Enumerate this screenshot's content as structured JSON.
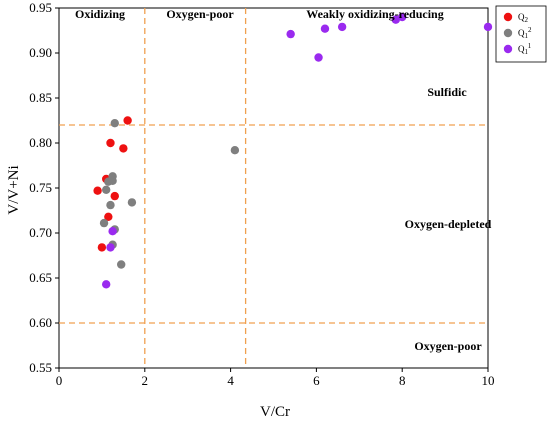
{
  "chart_data": {
    "type": "scatter",
    "title": "",
    "xlabel": "V/Cr",
    "ylabel": "V/V+Ni",
    "xlim": [
      0,
      10
    ],
    "ylim": [
      0.55,
      0.95
    ],
    "grid": false,
    "legend_placement": "top-right",
    "x_ticks": [
      "0",
      "2",
      "4",
      "6",
      "8",
      "10"
    ],
    "y_ticks": [
      "0.55",
      "0.60",
      "0.65",
      "0.70",
      "0.75",
      "0.80",
      "0.85",
      "0.90",
      "0.95"
    ],
    "threshold_lines": {
      "vertical": [
        2,
        4.35
      ],
      "horizontal": [
        0.6,
        0.82
      ],
      "color": "#f0a050"
    },
    "zone_labels": {
      "oxidizing": "Oxidizing",
      "oxygen_poor_top": "Oxygen-poor",
      "weakly": "Weakly oxidizing-reducing",
      "sulfidic": "Sulfidic",
      "oxygen_depleted": "Oxygen-depleted",
      "oxygen_poor_bottom": "Oxygen-poor"
    },
    "series": [
      {
        "name": "Q2",
        "legend_main": "Q",
        "legend_sub": "2",
        "legend_sup": "",
        "color": "#ee1111",
        "points": [
          [
            0.9,
            0.747
          ],
          [
            1.0,
            0.684
          ],
          [
            1.1,
            0.76
          ],
          [
            1.15,
            0.718
          ],
          [
            1.2,
            0.8
          ],
          [
            1.3,
            0.741
          ],
          [
            1.5,
            0.794
          ],
          [
            1.6,
            0.825
          ]
        ]
      },
      {
        "name": "Q12",
        "legend_main": "Q",
        "legend_sub": "1",
        "legend_sup": "2",
        "color": "#7f7f7f",
        "points": [
          [
            1.05,
            0.711
          ],
          [
            1.1,
            0.748
          ],
          [
            1.15,
            0.757
          ],
          [
            1.2,
            0.731
          ],
          [
            1.25,
            0.687
          ],
          [
            1.25,
            0.758
          ],
          [
            1.3,
            0.704
          ],
          [
            1.3,
            0.822
          ],
          [
            1.45,
            0.665
          ],
          [
            1.7,
            0.734
          ],
          [
            4.1,
            0.792
          ],
          [
            1.25,
            0.763
          ]
        ]
      },
      {
        "name": "Q11",
        "legend_main": "Q",
        "legend_sub": "1",
        "legend_sup": "1",
        "color": "#9a2aef",
        "points": [
          [
            1.1,
            0.643
          ],
          [
            1.2,
            0.684
          ],
          [
            1.25,
            0.702
          ],
          [
            5.4,
            0.921
          ],
          [
            6.05,
            0.895
          ],
          [
            6.2,
            0.927
          ],
          [
            6.6,
            0.929
          ],
          [
            7.85,
            0.937
          ],
          [
            8.0,
            0.94
          ],
          [
            10.0,
            0.929
          ]
        ]
      }
    ]
  }
}
